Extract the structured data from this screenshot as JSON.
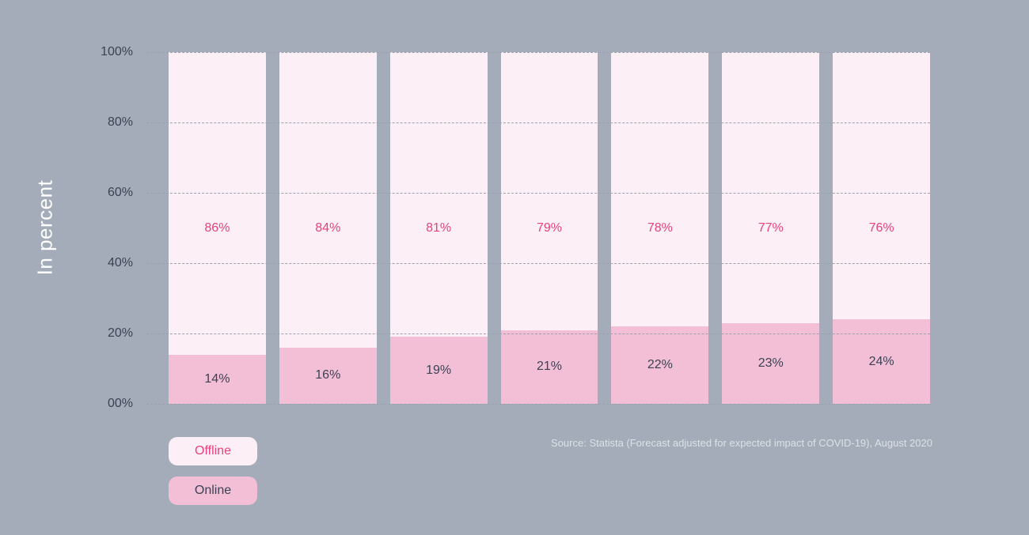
{
  "chart_data": {
    "type": "bar",
    "stacked": true,
    "bar_count": 7,
    "ylabel": "In percent",
    "yticks": [
      "100%",
      "80%",
      "60%",
      "40%",
      "20%",
      "00%"
    ],
    "ylim": [
      0,
      100
    ],
    "grid": "horizontal-dashed",
    "legend_position": "bottom-left",
    "series": [
      {
        "name": "Offline",
        "values": [
          86,
          84,
          81,
          79,
          78,
          77,
          76
        ],
        "labels": [
          "86%",
          "84%",
          "81%",
          "79%",
          "78%",
          "77%",
          "76%"
        ],
        "color": "#FCF0F6",
        "label_color": "#E8417E"
      },
      {
        "name": "Online",
        "values": [
          14,
          16,
          19,
          21,
          22,
          23,
          24
        ],
        "labels": [
          "14%",
          "16%",
          "19%",
          "21%",
          "22%",
          "23%",
          "24%"
        ],
        "color": "#F3BFD7",
        "label_color": "#3A4253"
      }
    ]
  },
  "legend": {
    "items": [
      {
        "label": "Offline",
        "bg": "#FCF0F6",
        "text_color": "#E8417E"
      },
      {
        "label": "Online",
        "bg": "#F3BFD7",
        "text_color": "#3A4253"
      }
    ]
  },
  "source": "Source: Statista (Forecast adjusted for expected impact of COVID-19), August 2020",
  "colors": {
    "background": "#A3ACB8",
    "grid": "#99A2AE",
    "axis_text": "#3A4253",
    "y_axis_title_text": "#FFFFFF",
    "source_text": "#DCE1E7"
  }
}
